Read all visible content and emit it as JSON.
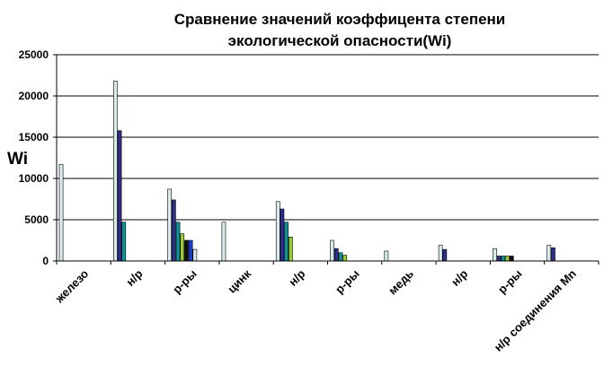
{
  "chart_data": {
    "type": "bar",
    "title_lines": [
      "Сравнение значений коэффицента степени",
      "экологической опасности(Wi)"
    ],
    "ylabel": "Wi",
    "xlabel": "",
    "ylim": [
      0,
      25000
    ],
    "yticks": [
      "0",
      "5000",
      "10000",
      "15000",
      "20000",
      "25000"
    ],
    "grid": true,
    "legend": "none",
    "categories": [
      "железо",
      "н/р",
      "р-ры",
      "цинк",
      "н/р",
      "р-ры",
      "медь",
      "н/р",
      "р-ры",
      "н/р соединения Mn"
    ],
    "series_colors": [
      "#d8ecec",
      "#2e2e8c",
      "#0f9595",
      "#9acd32",
      "#111111",
      "#1a3fd1"
    ],
    "values": [
      [
        11700
      ],
      [
        21800,
        15800,
        4700
      ],
      [
        8700,
        7400,
        4700,
        3300,
        2500,
        2500,
        1400
      ],
      [
        4700
      ],
      [
        7200,
        6300,
        4700,
        2900
      ],
      [
        2500,
        1500,
        1000,
        700
      ],
      [
        1200
      ],
      [
        1900,
        1400
      ],
      [
        1500,
        600,
        600,
        600,
        600
      ],
      [
        1900,
        1600
      ]
    ]
  }
}
